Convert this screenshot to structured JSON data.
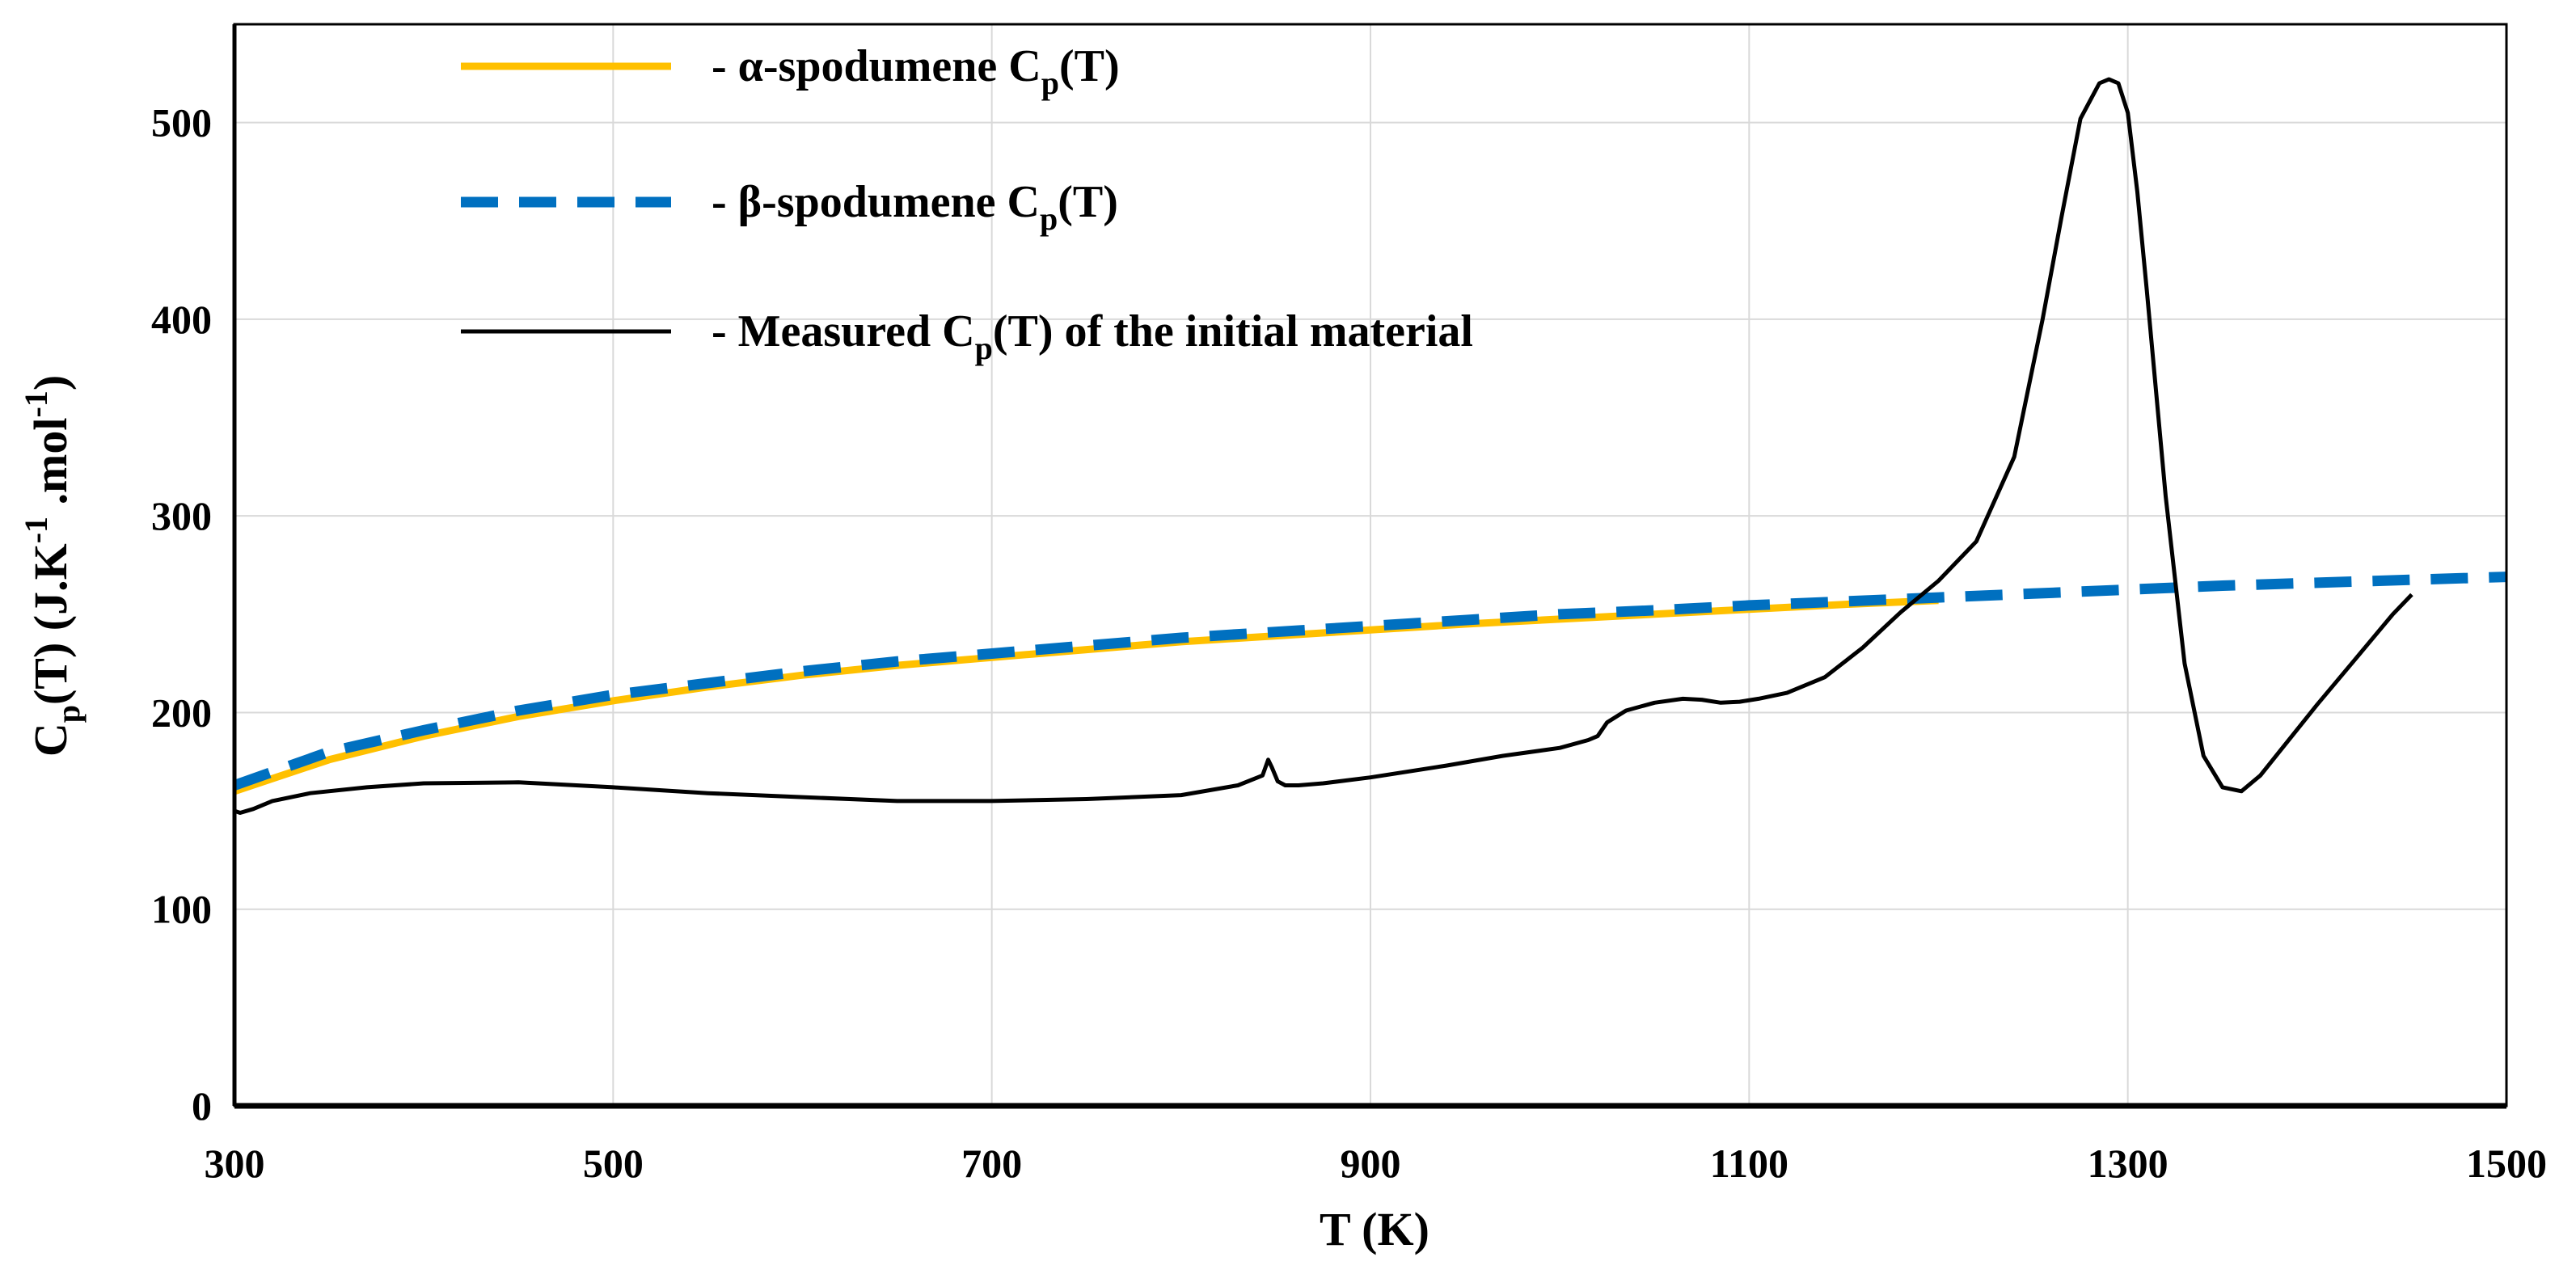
{
  "chart_data": {
    "type": "line",
    "title": "",
    "xlabel": "T (K)",
    "ylabel": {
      "main": "C",
      "sub": "p",
      "rest": "(T) (J.K",
      "sup1": "-1",
      "mid": " .mol",
      "sup2": "-1",
      "end": ")"
    },
    "xlim": [
      300,
      1500
    ],
    "ylim": [
      0,
      550
    ],
    "x_ticks": [
      300,
      500,
      700,
      900,
      1100,
      1300,
      1500
    ],
    "y_ticks": [
      0,
      100,
      200,
      300,
      400,
      500
    ],
    "grid": true,
    "legend_position": "top-left",
    "series": [
      {
        "name": "- α-spodumene C",
        "name_sub": "p",
        "name_tail": "(T)",
        "color": "#FFC000",
        "dash": "solid",
        "x": [
          300,
          350,
          400,
          450,
          500,
          550,
          600,
          650,
          700,
          750,
          800,
          850,
          900,
          950,
          1000,
          1050,
          1100,
          1150,
          1200
        ],
        "y": [
          160,
          176,
          188,
          198,
          206,
          213,
          219,
          224,
          228,
          232,
          236,
          239,
          242,
          245,
          247.5,
          250,
          252.5,
          255,
          257
        ]
      },
      {
        "name": "- β-spodumene C",
        "name_sub": "p",
        "name_tail": "(T)",
        "color": "#0070C0",
        "dash": "dashed",
        "x": [
          300,
          350,
          400,
          450,
          500,
          550,
          600,
          650,
          700,
          750,
          800,
          850,
          900,
          950,
          1000,
          1050,
          1100,
          1150,
          1200,
          1250,
          1300,
          1350,
          1400,
          1450,
          1500
        ],
        "y": [
          163,
          180,
          191,
          201,
          209,
          215,
          221,
          226,
          230,
          234,
          238,
          241,
          244,
          247,
          250,
          252,
          254.5,
          256.5,
          258.5,
          260.5,
          262.5,
          264.5,
          266,
          267.5,
          269
        ]
      },
      {
        "name": "- Measured C",
        "name_sub": "p",
        "name_tail": "(T) of the initial material",
        "color": "#000000",
        "dash": "solid",
        "x": [
          300,
          303,
          310,
          320,
          340,
          370,
          400,
          450,
          500,
          550,
          600,
          650,
          700,
          750,
          800,
          830,
          843,
          846,
          848,
          851,
          855,
          862,
          875,
          900,
          940,
          970,
          1000,
          1015,
          1020,
          1025,
          1035,
          1050,
          1065,
          1075,
          1085,
          1095,
          1105,
          1120,
          1140,
          1160,
          1180,
          1200,
          1220,
          1240,
          1255,
          1265,
          1275,
          1285,
          1290,
          1295,
          1300,
          1305,
          1310,
          1320,
          1330,
          1340,
          1350,
          1360,
          1370,
          1380,
          1400,
          1420,
          1440,
          1450
        ],
        "y": [
          150,
          149,
          151,
          155,
          159,
          162,
          164,
          164.5,
          162,
          159,
          157,
          155,
          155,
          156,
          158,
          163,
          168,
          176,
          172,
          165,
          163,
          163,
          164,
          167,
          173,
          178,
          182,
          186,
          188,
          195,
          201,
          205,
          207,
          206.5,
          205,
          205.5,
          207,
          210,
          218,
          233,
          251,
          267,
          287,
          330,
          400,
          452,
          502,
          520,
          522,
          520,
          505,
          465,
          415,
          310,
          225,
          178,
          162,
          160,
          168,
          180,
          204,
          227,
          250,
          260
        ]
      }
    ]
  }
}
